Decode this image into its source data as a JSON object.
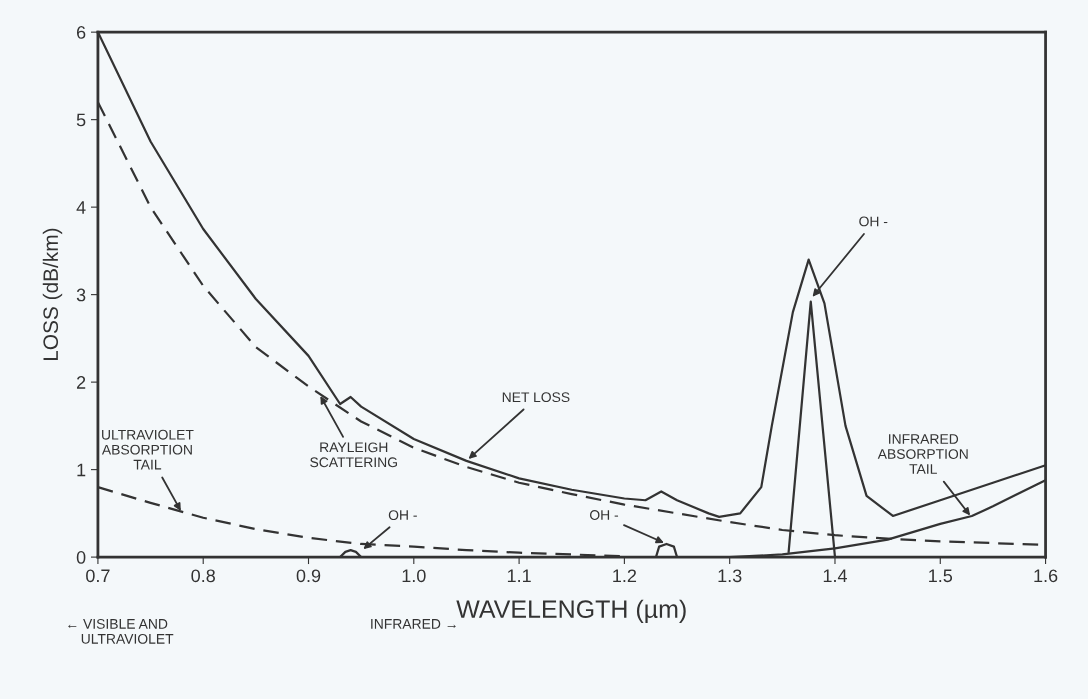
{
  "chart_data": {
    "type": "line",
    "xlabel": "WAVELENGTH (µm)",
    "ylabel": "LOSS (dB/km)",
    "xlim": [
      0.7,
      1.6
    ],
    "ylim": [
      0,
      6
    ],
    "xticks": [
      {
        "value": 0.7,
        "label": "0.7"
      },
      {
        "value": 0.8,
        "label": "0.8"
      },
      {
        "value": 0.9,
        "label": "0.9"
      },
      {
        "value": 1.0,
        "label": "1.0"
      },
      {
        "value": 1.1,
        "label": "1.1"
      },
      {
        "value": 1.2,
        "label": "1.2"
      },
      {
        "value": 1.3,
        "label": "1.3"
      },
      {
        "value": 1.4,
        "label": "1.4"
      },
      {
        "value": 1.5,
        "label": "1.5"
      },
      {
        "value": 1.6,
        "label": "1.6"
      }
    ],
    "yticks": [
      0,
      1,
      2,
      3,
      4,
      5,
      6
    ],
    "grid": false,
    "legend": false,
    "marker": "none",
    "series": [
      {
        "color": "#333333",
        "line_style": "solid",
        "x": [
          0.7,
          0.75,
          0.8,
          0.85,
          0.9,
          0.93,
          0.94,
          0.95,
          1.0,
          1.05,
          1.1,
          1.15,
          1.2,
          1.22,
          1.235,
          1.25,
          1.28,
          1.29,
          1.31,
          1.33,
          1.34,
          1.36,
          1.375,
          1.39,
          1.41,
          1.43,
          1.455,
          1.5,
          1.55,
          1.6
        ],
        "values": [
          6.0,
          4.75,
          3.75,
          2.95,
          2.3,
          1.75,
          1.83,
          1.72,
          1.35,
          1.1,
          0.9,
          0.77,
          0.67,
          0.65,
          0.75,
          0.65,
          0.5,
          0.46,
          0.5,
          0.8,
          1.5,
          2.8,
          3.4,
          2.9,
          1.5,
          0.7,
          0.47,
          0.65,
          0.85,
          1.05
        ]
      },
      {
        "color": "#333333",
        "line_style": "dashed",
        "x": [
          0.7,
          0.75,
          0.8,
          0.85,
          0.9,
          0.95,
          1.0,
          1.05,
          1.1,
          1.15,
          1.2,
          1.25,
          1.3,
          1.35,
          1.4,
          1.45,
          1.5,
          1.55,
          1.6
        ],
        "values": [
          5.2,
          4.0,
          3.1,
          2.4,
          1.95,
          1.55,
          1.25,
          1.03,
          0.85,
          0.72,
          0.6,
          0.5,
          0.4,
          0.31,
          0.25,
          0.21,
          0.18,
          0.16,
          0.14
        ]
      },
      {
        "color": "#333333",
        "line_style": "dashed",
        "x": [
          0.7,
          0.75,
          0.8,
          0.85,
          0.9,
          0.95,
          1.0,
          1.05,
          1.1,
          1.15,
          1.2
        ],
        "values": [
          0.8,
          0.62,
          0.45,
          0.32,
          0.22,
          0.15,
          0.12,
          0.08,
          0.05,
          0.03,
          0.01
        ]
      },
      {
        "color": "#333333",
        "line_style": "solid",
        "x": [
          1.3,
          1.35,
          1.4,
          1.45,
          1.5,
          1.53,
          1.55,
          1.6
        ],
        "values": [
          0.0,
          0.03,
          0.1,
          0.2,
          0.38,
          0.47,
          0.58,
          0.88
        ]
      },
      {
        "color": "#333333",
        "line_style": "solid",
        "x": [
          0.93,
          0.935,
          0.94,
          0.945,
          0.95,
          0.955,
          1.23,
          1.233,
          1.24,
          1.247,
          1.25,
          1.255,
          1.356,
          1.377,
          1.4
        ],
        "values": [
          0.0,
          0.06,
          0.08,
          0.06,
          0.0,
          null,
          0.0,
          0.12,
          0.15,
          0.12,
          0.0,
          null,
          0.06,
          2.92,
          0.0
        ]
      }
    ],
    "annotations": [
      {
        "text": "NET LOSS",
        "x": 1.05,
        "y": 1.1
      },
      {
        "text": "RAYLEIGH\nSCATTERING",
        "x": 0.91,
        "y": 1.87
      },
      {
        "text": "ULTRAVIOLET\nABSORPTION\nTAIL",
        "x": 0.78,
        "y": 0.5
      },
      {
        "text": "OH -",
        "x": 0.95,
        "y": 0.07
      },
      {
        "text": "OH -",
        "x": 1.24,
        "y": 0.15
      },
      {
        "text": "OH -",
        "x": 1.377,
        "y": 2.95
      },
      {
        "text": "INFRARED\nABSORPTION\nTAIL",
        "x": 1.53,
        "y": 0.45
      },
      "← VISIBLE AND\n    ULTRAVIOLET",
      "INFRARED →"
    ]
  }
}
